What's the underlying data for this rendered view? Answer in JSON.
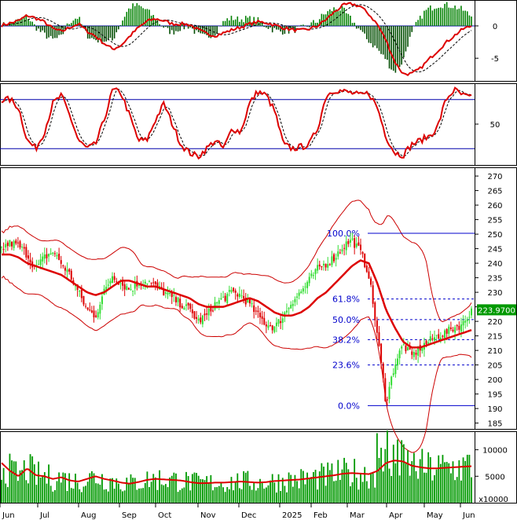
{
  "chart_data": [
    {
      "panel": "macd",
      "type": "line",
      "yticks": [
        0,
        -5
      ],
      "ylim": [
        -8.5,
        4
      ],
      "x_months": [
        "Jun",
        "Jul",
        "Aug",
        "Sep",
        "Oct",
        "Nov",
        "Dec",
        "2025",
        "Feb",
        "Mar",
        "Apr",
        "May",
        "Jun"
      ],
      "series_keys": [
        [
          0.1,
          0.4,
          0.8,
          1.6,
          1.2,
          0.6,
          -0.4,
          -0.9,
          -0.2,
          0.3,
          -0.8,
          -1.6,
          -2.7,
          -3.6,
          -3.0,
          -1.6,
          -0.3,
          0.7,
          1.1,
          0.8,
          0.3,
          0.3,
          0.2,
          -0.6,
          -1.2,
          -1.5,
          -1.1,
          -0.6,
          -0.2,
          0.3,
          0.6,
          0.5,
          0.1,
          -0.3,
          -0.6,
          -0.7,
          -0.5,
          0.0,
          1.0,
          2.2,
          3.2,
          3.4,
          3.0,
          1.8,
          0.2,
          -2.2,
          -5.5,
          -7.4,
          -7.4,
          -6.6,
          -5.2,
          -3.9,
          -2.6,
          -1.5,
          -0.5,
          0.0
        ]
      ],
      "histogram_sign": "green above zero, dark below"
    },
    {
      "panel": "stochastic",
      "type": "line",
      "yticks": [
        50
      ],
      "ylim": [
        0,
        100
      ],
      "reference_lines": [
        80,
        20
      ],
      "series_keys": [
        [
          80,
          80,
          70,
          30,
          20,
          40,
          75,
          85,
          60,
          30,
          20,
          25,
          55,
          92,
          88,
          60,
          30,
          30,
          55,
          75,
          50,
          25,
          15,
          10,
          20,
          30,
          20,
          45,
          40,
          75,
          90,
          85,
          65,
          25,
          20,
          22,
          25,
          45,
          85,
          92,
          90,
          88,
          85,
          88,
          70,
          35,
          15,
          12,
          25,
          30,
          35,
          45,
          80,
          92,
          85,
          82
        ]
      ]
    },
    {
      "panel": "price",
      "type": "line",
      "yticks": [
        270,
        265,
        260,
        255,
        250,
        245,
        240,
        235,
        230,
        225,
        220,
        215,
        210,
        205,
        200,
        195,
        190,
        185
      ],
      "ylim": [
        183,
        273
      ],
      "last_price": "223.9700",
      "fibonacci": [
        {
          "label": "100.0%",
          "value": 250.3
        },
        {
          "label": "61.8%",
          "value": 227.7
        },
        {
          "label": "50.0%",
          "value": 220.6
        },
        {
          "label": "38.2%",
          "value": 213.7
        },
        {
          "label": "23.6%",
          "value": 205.0
        },
        {
          "label": "0.0%",
          "value": 191.0
        }
      ],
      "close_keys": [
        [
          245,
          247,
          246,
          243,
          238,
          242,
          244,
          240,
          236,
          230,
          224,
          222,
          230,
          236,
          233,
          231,
          233,
          234,
          232,
          230,
          228,
          226,
          224,
          220,
          222,
          226,
          228,
          230,
          229,
          226,
          222,
          219,
          218,
          222,
          227,
          230,
          234,
          238,
          240,
          242,
          246,
          248,
          244,
          236,
          215,
          192,
          205,
          212,
          208,
          211,
          213,
          215,
          216,
          218,
          219,
          224
        ]
      ],
      "ma_keys": [
        [
          243,
          243,
          242,
          240,
          239,
          238,
          237,
          236,
          234,
          232,
          230,
          229,
          230,
          232,
          234,
          234,
          233,
          232,
          232,
          231,
          230,
          229,
          228,
          226,
          225,
          225,
          225,
          226,
          227,
          228,
          227,
          225,
          223,
          222,
          222,
          223,
          225,
          228,
          230,
          233,
          236,
          239,
          241,
          240,
          233,
          224,
          218,
          213,
          211,
          211,
          212,
          213,
          214,
          215,
          216,
          217
        ]
      ]
    },
    {
      "panel": "volume",
      "type": "bar",
      "yticks": [
        10000,
        5000
      ],
      "ylim": [
        0,
        13500
      ],
      "unit_label": "x10000",
      "volume_keys": [
        [
          7500,
          6000,
          5000,
          6500,
          5200,
          5000,
          4500,
          4800,
          4200,
          4000,
          4500,
          5000,
          4500,
          4200,
          3800,
          3600,
          3900,
          4300,
          4500,
          4400,
          4300,
          4200,
          3900,
          3700,
          3700,
          3800,
          3800,
          3900,
          4000,
          3900,
          3800,
          3900,
          4100,
          4200,
          4300,
          4400,
          4600,
          4800,
          5000,
          5200,
          5500,
          5600,
          5500,
          5400,
          6000,
          7500,
          8000,
          7800,
          7000,
          6700,
          6500,
          6500,
          6600,
          6700,
          6800,
          6900
        ]
      ]
    }
  ],
  "price_axis": {
    "last_price": "223.9700"
  }
}
